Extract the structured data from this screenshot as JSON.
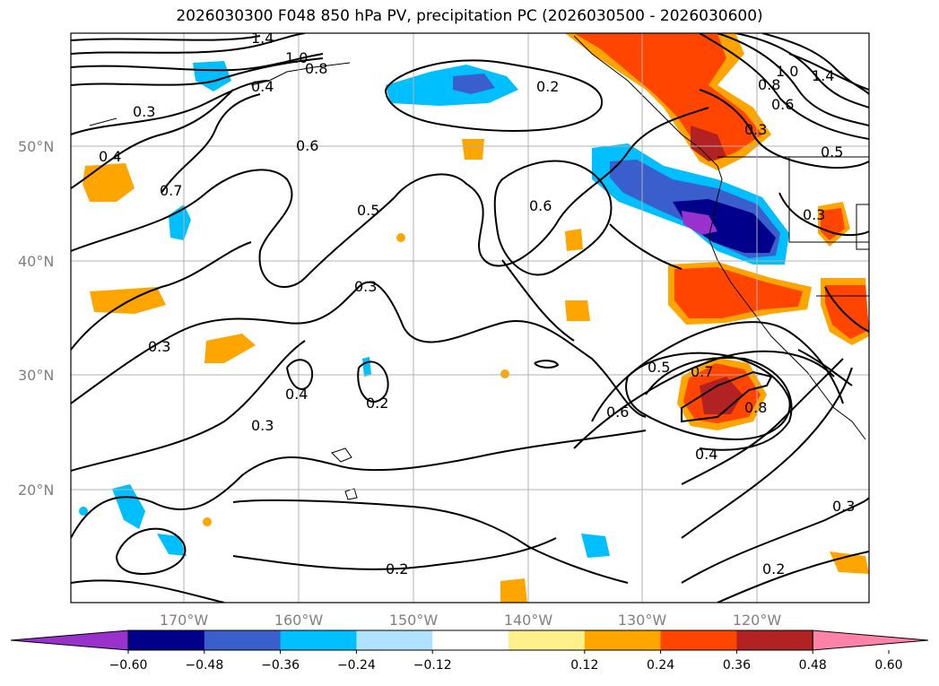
{
  "title": "2026030300 F048 850 hPa PV, precipitation PC (2026030500 - 2026030600)",
  "lat_labels": [
    "50°N",
    "40°N",
    "30°N",
    "20°N"
  ],
  "lon_labels": [
    "170°W",
    "160°W",
    "150°W",
    "140°W",
    "130°W",
    "120°W"
  ],
  "colorbar": {
    "ticks": [
      "−0.60",
      "−0.48",
      "−0.36",
      "−0.24",
      "−0.12",
      "0.12",
      "0.24",
      "0.36",
      "0.48",
      "0.60"
    ],
    "colors": [
      "#9932cc",
      "#00008b",
      "#3a5fcd",
      "#00bfff",
      "#b0e2ff",
      "#ffffff",
      "#fff08c",
      "#ffa500",
      "#ff4500",
      "#b22222",
      "#ff82ab"
    ]
  },
  "contour_labels": [
    "1.4",
    "1.0",
    "0.8",
    "0.4",
    "0.3",
    "0.4",
    "0.7",
    "0.6",
    "0.5",
    "0.6",
    "0.3",
    "0.3",
    "0.4",
    "0.2",
    "0.3",
    "0.2",
    "0.5",
    "0.6",
    "0.7",
    "0.8",
    "0.4",
    "0.2",
    "0.3",
    "1.0",
    "0.8",
    "0.6",
    "0.3",
    "0.5",
    "1.4",
    "0.3",
    "0.2"
  ]
}
